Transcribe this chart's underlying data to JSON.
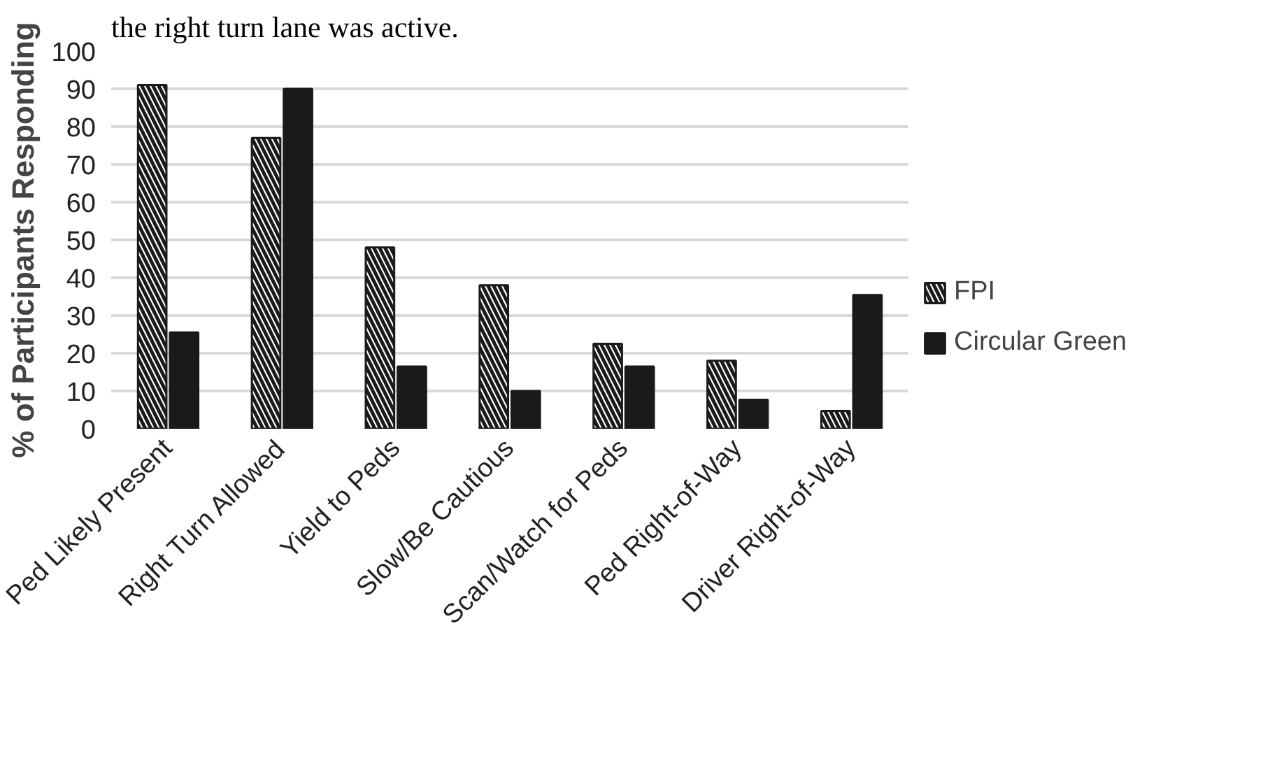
{
  "chart_data": {
    "type": "bar",
    "annotations": [
      "the right turn lane was active."
    ],
    "ylabel": "% of Participants Responding",
    "categories": [
      "Ped Likely Present",
      "Right Turn Allowed",
      "Yield to Peds",
      "Slow/Be Cautious",
      "Scan/Watch for Peds",
      "Ped Right-of-Way",
      "Driver Right-of-Way"
    ],
    "series": [
      {
        "name": "FPI",
        "color": "#ffffff",
        "values": [
          91,
          77,
          48,
          38,
          22.5,
          18,
          4.7
        ]
      },
      {
        "name": "Circular Green",
        "color": "#1a1a1a",
        "values": [
          25.5,
          90,
          16.5,
          10,
          16.5,
          7.7,
          35.4
        ]
      }
    ],
    "ylim": [
      0,
      100
    ],
    "yticks": [
      0,
      10,
      20,
      30,
      40,
      50,
      60,
      70,
      80,
      90,
      100
    ],
    "grid": "y",
    "legend": "right"
  }
}
